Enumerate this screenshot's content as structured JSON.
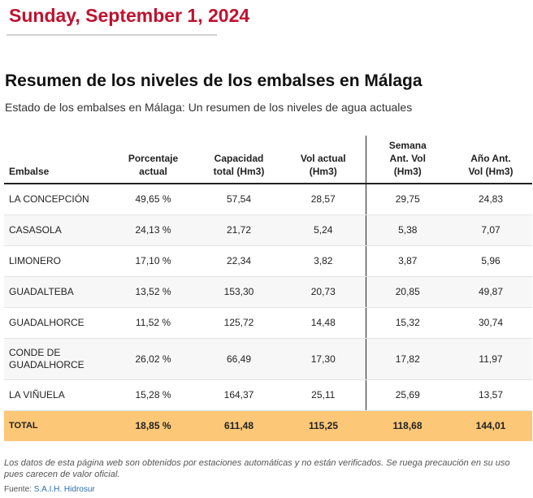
{
  "header": {
    "date": "Sunday, September 1, 2024"
  },
  "article": {
    "title": "Resumen de los niveles de los embalses en Málaga",
    "subtitle": "Estado de los embalses en Málaga: Un resumen de los niveles de agua actuales"
  },
  "colors": {
    "date": "#c0122e",
    "total_row": "#fcc776",
    "link": "#2a6fb0"
  },
  "table": {
    "headers": {
      "embalse": "Embalse",
      "porcentaje_1": "Porcentaje",
      "porcentaje_2": "actual",
      "capacidad_1": "Capacidad",
      "capacidad_2": "total (Hm3)",
      "vol_1": "Vol actual",
      "vol_2": "(Hm3)",
      "semana_1": "Semana",
      "semana_2": "Ant. Vol",
      "semana_3": "(Hm3)",
      "anio_1": "Año Ant.",
      "anio_2": "Vol (Hm3)"
    },
    "rows": [
      {
        "name": "LA CONCEPCIÓN",
        "pct": "49,65 %",
        "cap": "57,54",
        "vol": "28,57",
        "week": "29,75",
        "year": "24,83"
      },
      {
        "name": "CASASOLA",
        "pct": "24,13 %",
        "cap": "21,72",
        "vol": "5,24",
        "week": "5,38",
        "year": "7,07"
      },
      {
        "name": "LIMONERO",
        "pct": "17,10 %",
        "cap": "22,34",
        "vol": "3,82",
        "week": "3,87",
        "year": "5,96"
      },
      {
        "name": "GUADALTEBA",
        "pct": "13,52 %",
        "cap": "153,30",
        "vol": "20,73",
        "week": "20,85",
        "year": "49,87"
      },
      {
        "name": "GUADALHORCE",
        "pct": "11,52 %",
        "cap": "125,72",
        "vol": "14,48",
        "week": "15,32",
        "year": "30,74"
      },
      {
        "name": "CONDE DE GUADALHORCE",
        "pct": "26,02 %",
        "cap": "66,49",
        "vol": "17,30",
        "week": "17,82",
        "year": "11,97"
      },
      {
        "name": "LA VIÑUELA",
        "pct": "15,28 %",
        "cap": "164,37",
        "vol": "25,11",
        "week": "25,69",
        "year": "13,57"
      }
    ],
    "total": {
      "name": "TOTAL",
      "pct": "18,85 %",
      "cap": "611,48",
      "vol": "115,25",
      "week": "118,68",
      "year": "144,01"
    }
  },
  "footer": {
    "note": "Los datos de esta página web son obtenidos por estaciones automáticas y no están verificados. Se ruega precaución en su uso pues carecen de valor oficial.",
    "source_label": "Fuente:",
    "source_link": "S.A.I.H. Hidrosur"
  }
}
